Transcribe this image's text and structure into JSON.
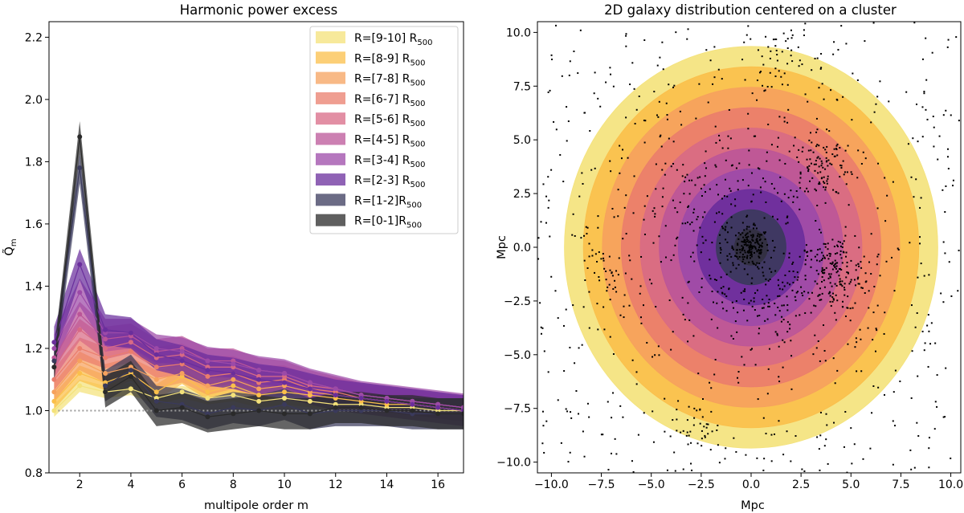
{
  "chart_data": [
    {
      "type": "line",
      "title": "Harmonic power excess",
      "xlabel": "multipole order m",
      "ylabel": "Q̃m",
      "xlim": [
        0.8,
        17
      ],
      "ylim": [
        0.8,
        2.25
      ],
      "xticks": [
        "2",
        "4",
        "6",
        "8",
        "10",
        "12",
        "14",
        "16"
      ],
      "yticks": [
        "0.8",
        "1.0",
        "1.2",
        "1.4",
        "1.6",
        "1.8",
        "2.0",
        "2.2"
      ],
      "reference_line": {
        "y": 1.0,
        "style": "dotted",
        "color": "#9a9a9a"
      },
      "legend_placement": "upper right",
      "x": [
        1,
        2,
        3,
        4,
        5,
        6,
        7,
        8,
        9,
        10,
        11,
        12,
        13,
        14,
        15,
        16,
        17
      ],
      "series": [
        {
          "name": "R=[9-10] R",
          "sub": "500",
          "color": "#f4e27a",
          "err": 0.02,
          "values": [
            1.0,
            1.08,
            1.06,
            1.07,
            1.04,
            1.06,
            1.04,
            1.05,
            1.03,
            1.04,
            1.03,
            1.02,
            1.02,
            1.01,
            1.01,
            1.0,
            1.0
          ]
        },
        {
          "name": "R=[8-9] R",
          "sub": "500",
          "color": "#fbbf4a",
          "err": 0.025,
          "values": [
            1.03,
            1.12,
            1.09,
            1.12,
            1.06,
            1.11,
            1.06,
            1.08,
            1.05,
            1.06,
            1.05,
            1.04,
            1.03,
            1.02,
            1.02,
            1.01,
            1.0
          ]
        },
        {
          "name": "R=[7-8] R",
          "sub": "500",
          "color": "#f6a15d",
          "err": 0.03,
          "values": [
            1.06,
            1.16,
            1.12,
            1.14,
            1.1,
            1.12,
            1.08,
            1.1,
            1.07,
            1.08,
            1.06,
            1.05,
            1.04,
            1.03,
            1.02,
            1.01,
            1.0
          ]
        },
        {
          "name": "R=[6-7] R",
          "sub": "500",
          "color": "#ea7d6c",
          "err": 0.035,
          "values": [
            1.1,
            1.2,
            1.17,
            1.19,
            1.14,
            1.15,
            1.11,
            1.12,
            1.09,
            1.1,
            1.07,
            1.06,
            1.04,
            1.03,
            1.02,
            1.01,
            1.0
          ]
        },
        {
          "name": "R=[5-6] R",
          "sub": "500",
          "color": "#d86a85",
          "err": 0.035,
          "values": [
            1.14,
            1.26,
            1.2,
            1.22,
            1.17,
            1.18,
            1.14,
            1.14,
            1.11,
            1.11,
            1.08,
            1.07,
            1.05,
            1.04,
            1.03,
            1.02,
            1.01
          ]
        },
        {
          "name": "R=[4-5] R",
          "sub": "500",
          "color": "#bb5598",
          "err": 0.04,
          "values": [
            1.17,
            1.31,
            1.23,
            1.24,
            1.19,
            1.2,
            1.16,
            1.16,
            1.13,
            1.12,
            1.09,
            1.07,
            1.05,
            1.04,
            1.03,
            1.02,
            1.01
          ]
        },
        {
          "name": "R=[3-4] R",
          "sub": "500",
          "color": "#9c4aa8",
          "err": 0.045,
          "values": [
            1.2,
            1.38,
            1.25,
            1.25,
            1.2,
            1.19,
            1.16,
            1.15,
            1.13,
            1.12,
            1.09,
            1.07,
            1.05,
            1.04,
            1.03,
            1.02,
            1.01
          ]
        },
        {
          "name": "R=[2-3] R",
          "sub": "500",
          "color": "#6a2e9c",
          "err": 0.05,
          "values": [
            1.22,
            1.47,
            1.26,
            1.25,
            1.18,
            1.16,
            1.13,
            1.12,
            1.1,
            1.09,
            1.07,
            1.05,
            1.04,
            1.03,
            1.02,
            1.01,
            1.0
          ]
        },
        {
          "name": "R=[1-2]R",
          "sub": "500",
          "color": "#3a3a5c",
          "err": 0.05,
          "values": [
            1.16,
            1.78,
            1.08,
            1.13,
            1.03,
            1.02,
            0.99,
            1.01,
            1.0,
            1.02,
            0.99,
            1.0,
            1.0,
            1.0,
            0.99,
            0.99,
            0.99
          ]
        },
        {
          "name": "R=[0-1]R",
          "sub": "500",
          "color": "#2a2a2a",
          "err": 0.05,
          "values": [
            1.14,
            1.88,
            1.06,
            1.11,
            1.0,
            1.01,
            0.98,
            0.99,
            1.0,
            0.99,
            0.99,
            1.01,
            1.01,
            1.0,
            1.0,
            0.99,
            0.99
          ]
        }
      ]
    },
    {
      "type": "scatter",
      "title": "2D galaxy distribution centered on a cluster",
      "xlabel": "Mpc",
      "ylabel": "Mpc",
      "xlim": [
        -10.7,
        10.5
      ],
      "ylim": [
        -10.5,
        10.5
      ],
      "xticks": [
        "−10.0",
        "−7.5",
        "−5.0",
        "−2.5",
        "0.0",
        "2.5",
        "5.0",
        "7.5",
        "10.0"
      ],
      "yticks": [
        "−10.0",
        "−7.5",
        "−5.0",
        "−2.5",
        "0.0",
        "2.5",
        "5.0",
        "7.5",
        "10.0"
      ],
      "ring_radii_mpc": [
        1.75,
        2.7,
        3.65,
        4.6,
        5.55,
        6.5,
        7.45,
        8.4,
        9.35
      ],
      "ring_colors": [
        "#f4e27a",
        "#fbbf4a",
        "#f6a15d",
        "#ea7d6c",
        "#d86a85",
        "#bb5598",
        "#9c4aa8",
        "#6a2e9c",
        "#3a3a5c",
        "#2a2a2a"
      ],
      "points_description_count": 1400,
      "groups": [
        {
          "cx": 0.0,
          "cy": 0.0,
          "spread": 0.45,
          "n": 160
        },
        {
          "cx": 4.2,
          "cy": -1.2,
          "spread": 0.9,
          "n": 180
        },
        {
          "cx": 3.4,
          "cy": 3.8,
          "spread": 0.9,
          "n": 110
        },
        {
          "cx": 0.5,
          "cy": -2.5,
          "spread": 1.0,
          "n": 90
        },
        {
          "cx": -2.0,
          "cy": 1.5,
          "spread": 2.2,
          "n": 160
        },
        {
          "cx": -2.7,
          "cy": -8.5,
          "spread": 0.6,
          "n": 40
        },
        {
          "cx": -7.0,
          "cy": -1.5,
          "spread": 0.8,
          "n": 40
        },
        {
          "cx": 1.2,
          "cy": 9.0,
          "spread": 0.7,
          "n": 35
        }
      ]
    }
  ]
}
